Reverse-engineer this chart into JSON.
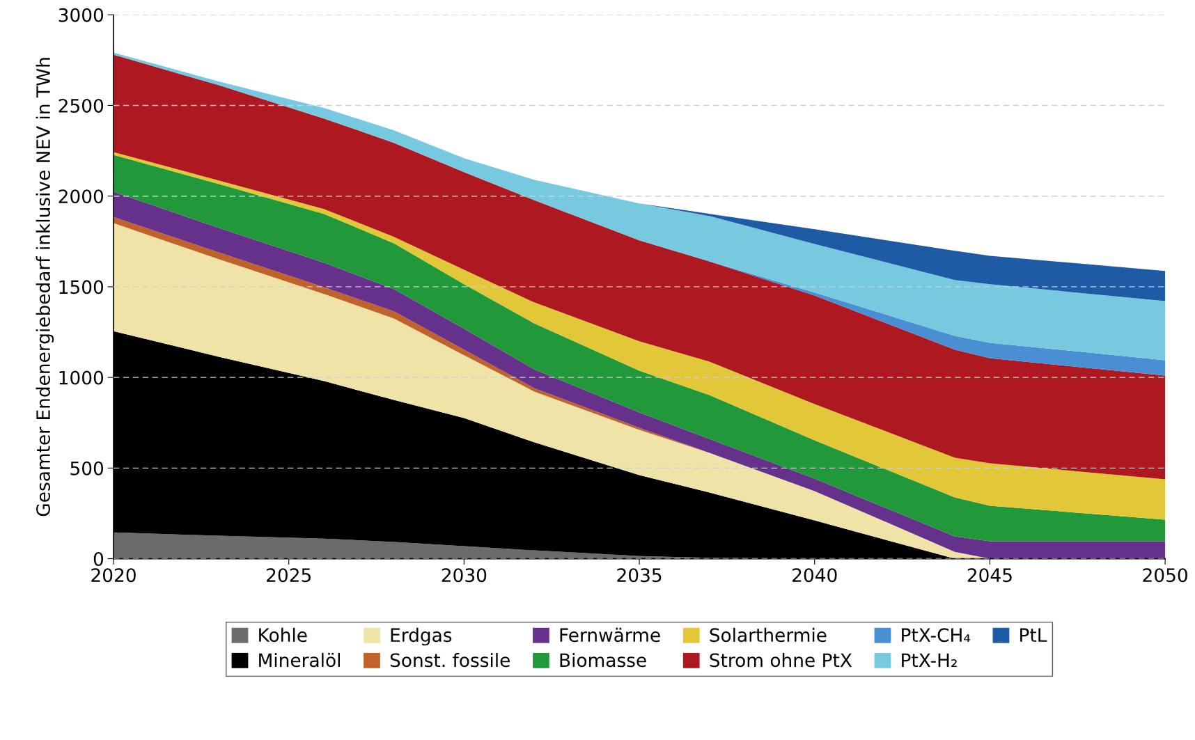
{
  "chart_data": {
    "type": "area",
    "stacked": true,
    "ylabel": "Gesamter Endenergiebedarf inklusive NEV in TWh",
    "x": [
      2020,
      2023,
      2026,
      2028,
      2030,
      2032,
      2035,
      2037,
      2040,
      2044,
      2045,
      2050
    ],
    "series": [
      {
        "name": "Kohle",
        "color": "#6b6b6b",
        "values": [
          145,
          127,
          111,
          92,
          69,
          46,
          15,
          5,
          0,
          0,
          0,
          0
        ]
      },
      {
        "name": "Mineralöl",
        "color": "#000000",
        "values": [
          1110,
          987,
          869,
          784,
          707,
          596,
          446,
          360,
          211,
          0,
          0,
          0
        ]
      },
      {
        "name": "Erdgas",
        "color": "#efe3a8",
        "values": [
          596,
          538,
          480,
          449,
          346,
          280,
          250,
          219,
          162,
          38,
          0,
          0
        ]
      },
      {
        "name": "Sonst. fossile",
        "color": "#c0622a",
        "values": [
          34,
          38,
          38,
          39,
          31,
          19,
          11,
          0,
          0,
          0,
          0,
          0
        ]
      },
      {
        "name": "Fernwärme",
        "color": "#66318b",
        "values": [
          139,
          135,
          135,
          123,
          115,
          104,
          85,
          77,
          69,
          85,
          96,
          96
        ]
      },
      {
        "name": "Biomasse",
        "color": "#21983a",
        "values": [
          203,
          242,
          269,
          253,
          246,
          253,
          230,
          242,
          211,
          215,
          196,
          119
        ]
      },
      {
        "name": "Solarthermie",
        "color": "#e2c838",
        "values": [
          16,
          19,
          27,
          35,
          80,
          116,
          162,
          184,
          200,
          219,
          234,
          223
        ]
      },
      {
        "name": "Strom ohne PtX",
        "color": "#ae1820",
        "values": [
          537,
          526,
          499,
          519,
          538,
          564,
          557,
          553,
          599,
          596,
          580,
          572
        ]
      },
      {
        "name": "PtX-CH₄",
        "color": "#4a8fd4",
        "values": [
          0,
          0,
          0,
          0,
          0,
          0,
          0,
          0,
          16,
          76,
          85,
          85
        ]
      },
      {
        "name": "PtX-H₂",
        "color": "#77c9e0",
        "values": [
          12,
          20,
          58,
          69,
          77,
          112,
          203,
          250,
          268,
          308,
          323,
          326
        ]
      },
      {
        "name": "PtL",
        "color": "#1f5aa5",
        "values": [
          0,
          0,
          0,
          0,
          0,
          0,
          0,
          12,
          81,
          161,
          157,
          166
        ]
      }
    ],
    "xlim": [
      2020,
      2050
    ],
    "xticks": [
      2020,
      2025,
      2030,
      2035,
      2040,
      2045,
      2050
    ],
    "ylim": [
      0,
      3000
    ],
    "yticks": [
      0,
      500,
      1000,
      1500,
      2000,
      2500,
      3000
    ],
    "grid": "y",
    "legend": "bottom"
  }
}
